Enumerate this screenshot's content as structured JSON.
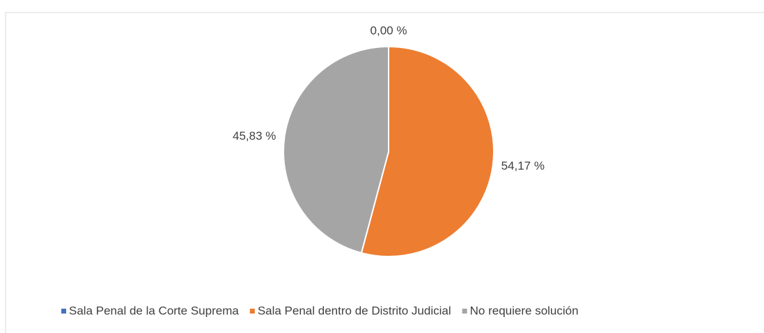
{
  "chart_data": {
    "type": "pie",
    "categories": [
      "Sala Penal de la Corte Suprema",
      "Sala Penal dentro de Distrito Judicial",
      "No requiere solución"
    ],
    "values": [
      0,
      54.17,
      45.83
    ],
    "value_labels": [
      "0,00 %",
      "54,17 %",
      "45,83 %"
    ],
    "colors": [
      "#4472c4",
      "#ed7d31",
      "#a5a5a5"
    ],
    "legend": "bottom"
  }
}
